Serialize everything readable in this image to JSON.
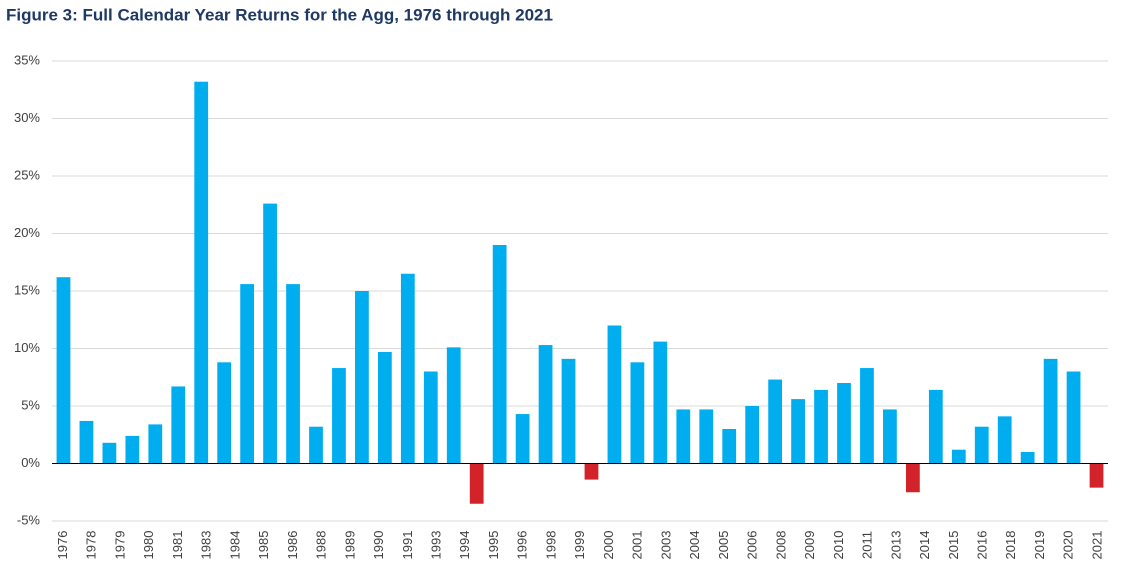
{
  "chart_data": {
    "type": "bar",
    "title": "Figure 3: Full Calendar Year Returns for the Agg, 1976 through 2021",
    "categories": [
      "1976",
      null,
      "1978",
      "1979",
      "1980",
      "1981",
      null,
      "1983",
      "1984",
      "1985",
      "1986",
      null,
      "1988",
      "1989",
      "1990",
      "1991",
      null,
      "1993",
      "1994",
      "1995",
      "1996",
      null,
      "1998",
      "1999",
      "2000",
      "2001",
      null,
      "2003",
      "2004",
      "2005",
      "2006",
      null,
      "2008",
      "2009",
      "2010",
      "2011",
      null,
      "2013",
      "2014",
      "2015",
      "2016",
      null,
      "2018",
      "2019",
      "2020",
      "2021"
    ],
    "values": [
      16.2,
      3.7,
      1.8,
      2.4,
      3.4,
      6.7,
      33.2,
      8.8,
      15.6,
      22.6,
      15.6,
      3.2,
      8.3,
      15.0,
      9.7,
      16.5,
      8.0,
      10.1,
      -3.5,
      19.0,
      4.3,
      10.3,
      9.1,
      -1.4,
      12.0,
      8.8,
      10.6,
      4.7,
      4.7,
      3.0,
      5.0,
      7.3,
      5.6,
      6.4,
      7.0,
      8.3,
      4.7,
      -2.5,
      6.4,
      1.2,
      3.2,
      4.1,
      1.0,
      9.1,
      8.0,
      -2.1
    ],
    "color": "#00aeef",
    "negative_color": "#d2232a",
    "ylim": [
      -5,
      35
    ],
    "yticks": [
      {
        "value": -5,
        "label": "-5%"
      },
      {
        "value": 0,
        "label": "0%"
      },
      {
        "value": 5,
        "label": "5%"
      },
      {
        "value": 10,
        "label": "10%"
      },
      {
        "value": 15,
        "label": "15%"
      },
      {
        "value": 20,
        "label": "20%"
      },
      {
        "value": 25,
        "label": "25%"
      },
      {
        "value": 30,
        "label": "30%"
      },
      {
        "value": 35,
        "label": "35%"
      }
    ],
    "grid": true
  }
}
